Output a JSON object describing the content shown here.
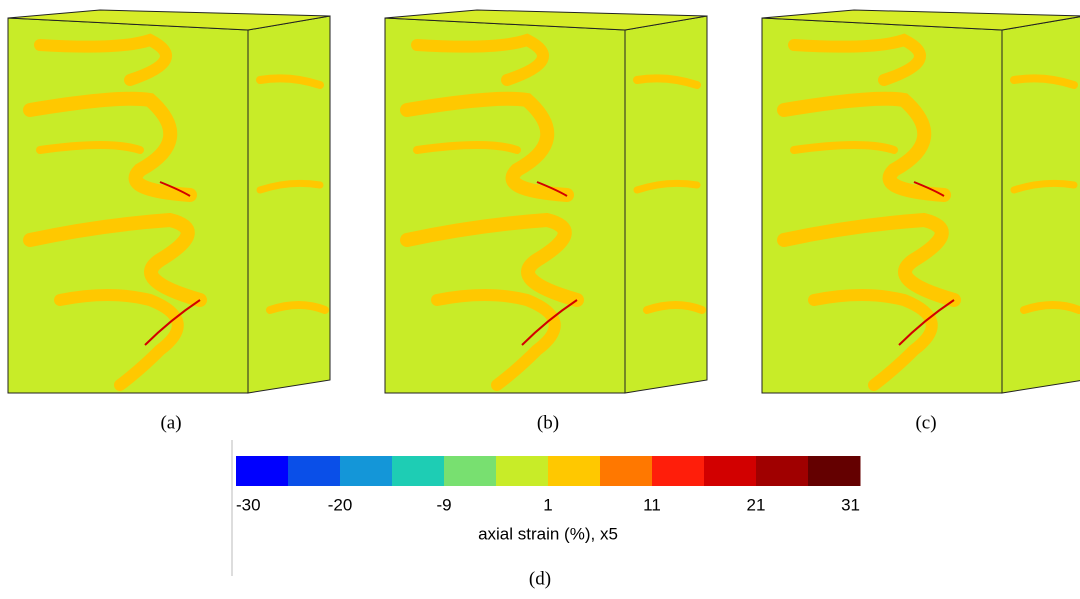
{
  "panels": [
    {
      "label": "(a)"
    },
    {
      "label": "(b)"
    },
    {
      "label": "(c)"
    }
  ],
  "colorbar": {
    "label": "(d)",
    "title": "axial strain (%), x5",
    "colors": [
      "#0000ff",
      "#0a4fe8",
      "#1496d8",
      "#1ecdb4",
      "#78e070",
      "#c8ec28",
      "#ffc800",
      "#ff7800",
      "#ff1e0a",
      "#d20000",
      "#a00000",
      "#640000"
    ],
    "ticks": [
      -30,
      -20,
      -9,
      1,
      11,
      21,
      31
    ]
  }
}
